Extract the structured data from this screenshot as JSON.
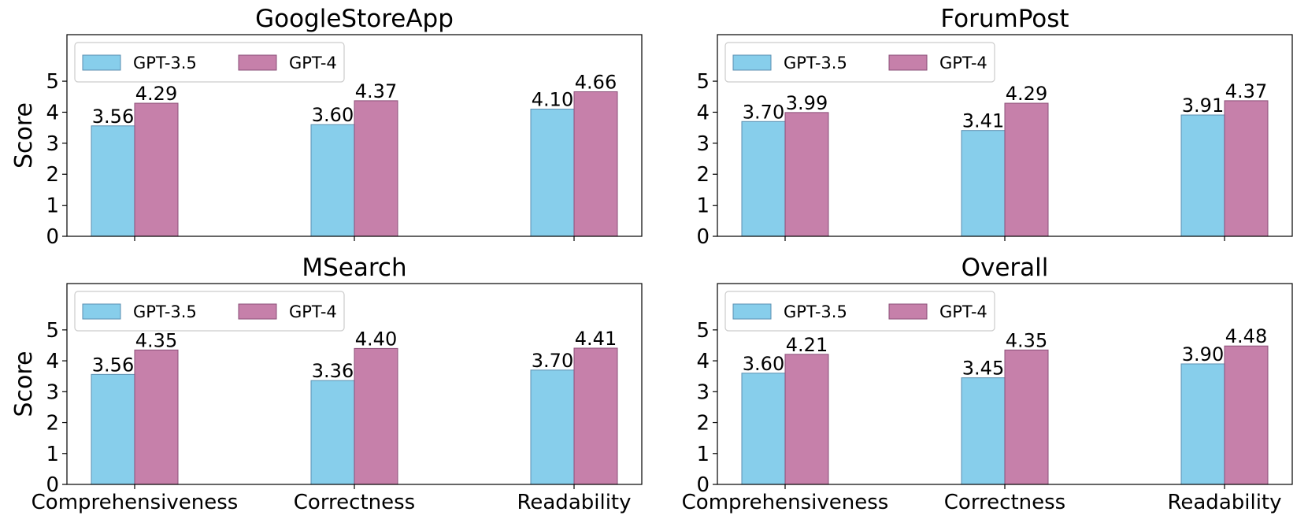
{
  "colors": {
    "gpt35_fill": "#87ceeb",
    "gpt35_edge": "#5b8fb0",
    "gpt4_fill": "#c680aa",
    "gpt4_edge": "#8b4f78"
  },
  "chart_data": [
    {
      "type": "bar",
      "title": "GoogleStoreApp",
      "ylabel": "Score",
      "xlabel": "",
      "categories": [
        "Comprehensiveness",
        "Correctness",
        "Readability"
      ],
      "series": [
        {
          "name": "GPT-3.5",
          "values": [
            3.56,
            3.6,
            4.1
          ],
          "labels": [
            "3.56",
            "3.60",
            "4.10"
          ]
        },
        {
          "name": "GPT-4",
          "values": [
            4.29,
            4.37,
            4.66
          ],
          "labels": [
            "4.29",
            "4.37",
            "4.66"
          ]
        }
      ],
      "ylim": [
        0,
        6.5
      ],
      "yticks": [
        "0",
        "1",
        "2",
        "3",
        "4",
        "5"
      ],
      "legend": "top-left",
      "grid": false
    },
    {
      "type": "bar",
      "title": "ForumPost",
      "ylabel": "",
      "xlabel": "",
      "categories": [
        "Comprehensiveness",
        "Correctness",
        "Readability"
      ],
      "series": [
        {
          "name": "GPT-3.5",
          "values": [
            3.7,
            3.41,
            3.91
          ],
          "labels": [
            "3.70",
            "3.41",
            "3.91"
          ]
        },
        {
          "name": "GPT-4",
          "values": [
            3.99,
            4.29,
            4.37
          ],
          "labels": [
            "3.99",
            "4.29",
            "4.37"
          ]
        }
      ],
      "ylim": [
        0,
        6.5
      ],
      "yticks": [
        "0",
        "1",
        "2",
        "3",
        "4",
        "5"
      ],
      "legend": "top-left",
      "grid": false
    },
    {
      "type": "bar",
      "title": "MSearch",
      "ylabel": "Score",
      "xlabel": "",
      "categories": [
        "Comprehensiveness",
        "Correctness",
        "Readability"
      ],
      "series": [
        {
          "name": "GPT-3.5",
          "values": [
            3.56,
            3.36,
            3.7
          ],
          "labels": [
            "3.56",
            "3.36",
            "3.70"
          ]
        },
        {
          "name": "GPT-4",
          "values": [
            4.35,
            4.4,
            4.41
          ],
          "labels": [
            "4.35",
            "4.40",
            "4.41"
          ]
        }
      ],
      "ylim": [
        0,
        6.5
      ],
      "yticks": [
        "0",
        "1",
        "2",
        "3",
        "4",
        "5"
      ],
      "legend": "top-left",
      "grid": false
    },
    {
      "type": "bar",
      "title": "Overall",
      "ylabel": "",
      "xlabel": "",
      "categories": [
        "Comprehensiveness",
        "Correctness",
        "Readability"
      ],
      "series": [
        {
          "name": "GPT-3.5",
          "values": [
            3.6,
            3.45,
            3.9
          ],
          "labels": [
            "3.60",
            "3.45",
            "3.90"
          ]
        },
        {
          "name": "GPT-4",
          "values": [
            4.21,
            4.35,
            4.48
          ],
          "labels": [
            "4.21",
            "4.35",
            "4.48"
          ]
        }
      ],
      "ylim": [
        0,
        6.5
      ],
      "yticks": [
        "0",
        "1",
        "2",
        "3",
        "4",
        "5"
      ],
      "legend": "top-left",
      "grid": false
    }
  ]
}
